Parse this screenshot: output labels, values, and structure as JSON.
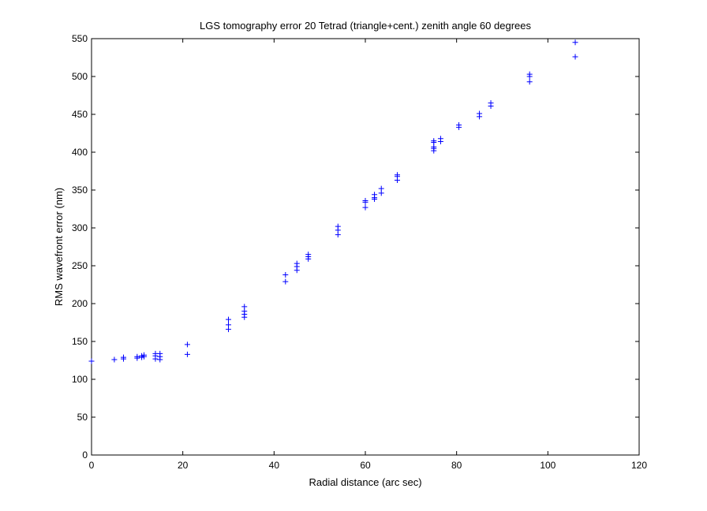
{
  "chart_data": {
    "type": "scatter",
    "title": "LGS tomography error 20 Tetrad (triangle+cent.) zenith angle 60 degrees",
    "xlabel": "Radial distance (arc sec)",
    "ylabel": "RMS wavefront error (nm)",
    "xlim": [
      0,
      120
    ],
    "ylim": [
      0,
      550
    ],
    "xticks": [
      0,
      20,
      40,
      60,
      80,
      100,
      120
    ],
    "yticks": [
      0,
      50,
      100,
      150,
      200,
      250,
      300,
      350,
      400,
      450,
      500,
      550
    ],
    "grid": false,
    "marker": "+",
    "marker_color": "#0000ff",
    "points": [
      [
        0,
        124
      ],
      [
        5,
        126
      ],
      [
        7,
        127
      ],
      [
        7,
        129
      ],
      [
        10,
        128
      ],
      [
        10,
        130
      ],
      [
        11,
        129
      ],
      [
        11,
        131
      ],
      [
        11.5,
        130
      ],
      [
        11.5,
        132
      ],
      [
        14,
        127
      ],
      [
        14,
        131
      ],
      [
        14,
        134
      ],
      [
        15,
        126
      ],
      [
        15,
        130
      ],
      [
        15,
        134
      ],
      [
        21,
        133
      ],
      [
        21,
        146
      ],
      [
        30,
        166
      ],
      [
        30,
        172
      ],
      [
        30,
        179
      ],
      [
        33.5,
        182
      ],
      [
        33.5,
        186
      ],
      [
        33.5,
        190
      ],
      [
        33.5,
        196
      ],
      [
        42.5,
        229
      ],
      [
        42.5,
        238
      ],
      [
        45,
        244
      ],
      [
        45,
        249
      ],
      [
        45,
        253
      ],
      [
        47.5,
        259
      ],
      [
        47.5,
        262
      ],
      [
        47.5,
        265
      ],
      [
        54,
        291
      ],
      [
        54,
        297
      ],
      [
        54,
        302
      ],
      [
        60,
        327
      ],
      [
        60,
        334
      ],
      [
        60,
        336
      ],
      [
        62,
        338
      ],
      [
        62,
        340
      ],
      [
        62,
        344
      ],
      [
        63.5,
        346
      ],
      [
        63.5,
        352
      ],
      [
        67,
        363
      ],
      [
        67,
        368
      ],
      [
        67,
        370
      ],
      [
        75,
        402
      ],
      [
        75,
        405
      ],
      [
        75,
        407
      ],
      [
        75,
        413
      ],
      [
        75,
        415
      ],
      [
        76.5,
        414
      ],
      [
        76.5,
        418
      ],
      [
        80.5,
        433
      ],
      [
        80.5,
        436
      ],
      [
        85,
        447
      ],
      [
        85,
        451
      ],
      [
        87.5,
        461
      ],
      [
        87.5,
        465
      ],
      [
        96,
        493
      ],
      [
        96,
        500
      ],
      [
        96,
        503
      ],
      [
        106,
        526
      ],
      [
        106,
        545
      ]
    ]
  }
}
